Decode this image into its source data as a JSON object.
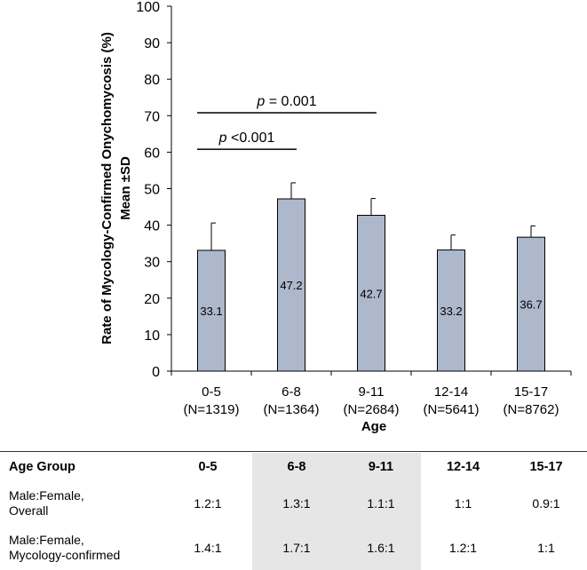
{
  "chart_data": {
    "type": "bar",
    "title": "",
    "xlabel": "Age",
    "ylabel": "Rate of Mycology-Confirmed Onychomycosis (%) Mean ±SD",
    "ylabel_lines": [
      "Rate of Mycology-Confirmed Onychomycosis (%)",
      "Mean ±SD"
    ],
    "ylim": [
      0,
      100
    ],
    "yticks": [
      0,
      10,
      20,
      30,
      40,
      50,
      60,
      70,
      80,
      90,
      100
    ],
    "grid": false,
    "categories": [
      "0-5",
      "6-8",
      "9-11",
      "12-14",
      "15-17"
    ],
    "category_n": [
      "(N=1319)",
      "(N=1364)",
      "(N=2684)",
      "(N=5641)",
      "(N=8762)"
    ],
    "values": [
      33.1,
      47.2,
      42.7,
      33.2,
      36.7
    ],
    "sd_upper": [
      40.6,
      51.6,
      47.3,
      37.3,
      39.8
    ],
    "bar_color": "#aeb8cc",
    "annotations": [
      {
        "p_label": "p",
        "text": " = 0.001",
        "from": "0-5",
        "to": "9-11",
        "y": 70.8
      },
      {
        "p_label": "p",
        "text": " <0.001",
        "from": "0-5",
        "to": "6-8",
        "y": 60.8
      }
    ]
  },
  "table": {
    "header": [
      "Age Group",
      "0-5",
      "6-8",
      "9-11",
      "12-14",
      "15-17"
    ],
    "shade_color": "#e6e6e6",
    "rows": [
      {
        "label_lines": [
          "Male:Female,",
          "Overall"
        ],
        "values": [
          "1.2:1",
          "1.3:1",
          "1.1:1",
          "1:1",
          "0.9:1"
        ]
      },
      {
        "label_lines": [
          "Male:Female,",
          "Mycology-confirmed"
        ],
        "values": [
          "1.4:1",
          "1.7:1",
          "1.6:1",
          "1.2:1",
          "1:1"
        ]
      }
    ]
  }
}
